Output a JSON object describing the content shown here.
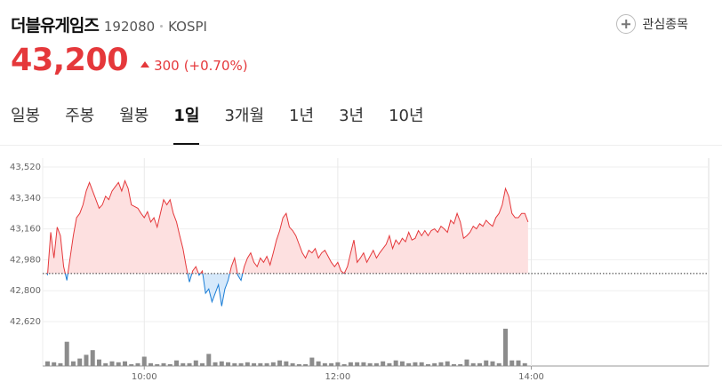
{
  "header": {
    "name": "더블유게임즈",
    "code": "192080",
    "market": "KOSPI",
    "watch_button": "관심종목"
  },
  "quote": {
    "price": {
      "value": 43200,
      "label": "43,200"
    },
    "change": 300,
    "change_pct": {
      "value": 0.7,
      "label": "(+0.70%)"
    }
  },
  "tabs": {
    "items": [
      "일봉",
      "주봉",
      "월봉",
      "1일",
      "3개월",
      "1년",
      "3년",
      "10년"
    ],
    "selected": 3
  },
  "chart_data": [
    {
      "type": "line",
      "x": [
        "09:00",
        "09:02",
        "09:04",
        "09:06",
        "09:08",
        "09:10",
        "09:12",
        "09:14",
        "09:16",
        "09:18",
        "09:20",
        "09:22",
        "09:24",
        "09:26",
        "09:28",
        "09:30",
        "09:32",
        "09:34",
        "09:36",
        "09:38",
        "09:40",
        "09:42",
        "09:44",
        "09:46",
        "09:48",
        "09:50",
        "09:52",
        "09:54",
        "09:56",
        "09:58",
        "10:00",
        "10:02",
        "10:04",
        "10:06",
        "10:08",
        "10:10",
        "10:12",
        "10:14",
        "10:16",
        "10:18",
        "10:20",
        "10:22",
        "10:24",
        "10:26",
        "10:28",
        "10:30",
        "10:32",
        "10:34",
        "10:36",
        "10:38",
        "10:40",
        "10:42",
        "10:44",
        "10:46",
        "10:48",
        "10:50",
        "10:52",
        "10:54",
        "10:56",
        "10:58",
        "11:00",
        "11:02",
        "11:04",
        "11:06",
        "11:08",
        "11:10",
        "11:12",
        "11:14",
        "11:16",
        "11:18",
        "11:20",
        "11:22",
        "11:24",
        "11:26",
        "11:28",
        "11:30",
        "11:32",
        "11:34",
        "11:36",
        "11:38",
        "11:40",
        "11:42",
        "11:44",
        "11:46",
        "11:48",
        "11:50",
        "11:52",
        "11:54",
        "11:56",
        "11:58",
        "12:00",
        "12:02",
        "12:04",
        "12:06",
        "12:08",
        "12:10",
        "12:12",
        "12:14",
        "12:16",
        "12:18",
        "12:20",
        "12:22",
        "12:24",
        "12:26",
        "12:28",
        "12:30",
        "12:32",
        "12:34",
        "12:36",
        "12:38",
        "12:40",
        "12:42",
        "12:44",
        "12:46",
        "12:48",
        "12:50",
        "12:52",
        "12:54",
        "12:56",
        "12:58",
        "13:00",
        "13:02",
        "13:04",
        "13:06",
        "13:08",
        "13:10",
        "13:12",
        "13:14",
        "13:16",
        "13:18",
        "13:20",
        "13:22",
        "13:24",
        "13:26",
        "13:28",
        "13:30",
        "13:32",
        "13:34",
        "13:36",
        "13:38",
        "13:40",
        "13:42",
        "13:44",
        "13:46",
        "13:48",
        "13:50",
        "13:52",
        "13:54",
        "13:56",
        "13:58"
      ],
      "series": [
        {
          "color": "#e5383b",
          "below_color": "#1c7ed6",
          "fill": "#fde0e0",
          "below_fill": "#d6e9fb",
          "values": [
            42890,
            43140,
            42990,
            43170,
            43120,
            42940,
            42860,
            42990,
            43120,
            43225,
            43250,
            43300,
            43380,
            43430,
            43380,
            43330,
            43280,
            43300,
            43350,
            43330,
            43380,
            43405,
            43430,
            43380,
            43440,
            43395,
            43300,
            43290,
            43280,
            43250,
            43225,
            43260,
            43200,
            43225,
            43170,
            43250,
            43330,
            43300,
            43330,
            43250,
            43200,
            43120,
            43045,
            42940,
            42850,
            42915,
            42940,
            42890,
            42915,
            42785,
            42810,
            42735,
            42785,
            42835,
            42710,
            42810,
            42860,
            42940,
            42990,
            42890,
            42860,
            42940,
            42990,
            43020,
            42965,
            42940,
            42990,
            42965,
            43000,
            42950,
            43020,
            43095,
            43150,
            43225,
            43250,
            43170,
            43150,
            43120,
            43070,
            43020,
            42990,
            43035,
            43020,
            43045,
            42990,
            43020,
            43035,
            43000,
            42965,
            42940,
            42965,
            42915,
            42900,
            42940,
            43020,
            43095,
            42965,
            42990,
            43020,
            42965,
            43000,
            43035,
            42990,
            43020,
            43045,
            43070,
            43120,
            43045,
            43095,
            43070,
            43105,
            43085,
            43140,
            43095,
            43105,
            43150,
            43120,
            43150,
            43120,
            43150,
            43160,
            43140,
            43175,
            43160,
            43140,
            43210,
            43190,
            43250,
            43200,
            43105,
            43120,
            43140,
            43175,
            43160,
            43190,
            43175,
            43210,
            43190,
            43175,
            43225,
            43250,
            43300,
            43395,
            43350,
            43250,
            43225,
            43225,
            43250,
            43250,
            43200
          ]
        }
      ],
      "xlim": [
        "08:57",
        "15:50"
      ],
      "xticks": [
        "10:00",
        "12:00",
        "14:00"
      ],
      "ylim": [
        42620,
        43520
      ],
      "yticks": [
        {
          "value": 42620,
          "label": "42,620"
        },
        {
          "value": 42800,
          "label": "42,800"
        },
        {
          "value": 42980,
          "label": "42,980"
        },
        {
          "value": 43160,
          "label": "43,160"
        },
        {
          "value": 43340,
          "label": "43,340"
        },
        {
          "value": 43520,
          "label": "43,520"
        }
      ],
      "grid": true
    },
    {
      "type": "bar",
      "x": [
        "09:00",
        "09:04",
        "09:08",
        "09:12",
        "09:16",
        "09:20",
        "09:24",
        "09:28",
        "09:32",
        "09:36",
        "09:40",
        "09:44",
        "09:48",
        "09:52",
        "09:56",
        "10:00",
        "10:04",
        "10:08",
        "10:12",
        "10:16",
        "10:20",
        "10:24",
        "10:28",
        "10:32",
        "10:36",
        "10:40",
        "10:44",
        "10:48",
        "10:52",
        "10:56",
        "11:00",
        "11:04",
        "11:08",
        "11:12",
        "11:16",
        "11:20",
        "11:24",
        "11:28",
        "11:32",
        "11:36",
        "11:40",
        "11:44",
        "11:48",
        "11:52",
        "11:56",
        "12:00",
        "12:04",
        "12:08",
        "12:12",
        "12:16",
        "12:20",
        "12:24",
        "12:28",
        "12:32",
        "12:36",
        "12:40",
        "12:44",
        "12:48",
        "12:52",
        "12:56",
        "13:00",
        "13:04",
        "13:08",
        "13:12",
        "13:16",
        "13:20",
        "13:24",
        "13:28",
        "13:32",
        "13:36",
        "13:40",
        "13:44",
        "13:48",
        "13:52",
        "13:56"
      ],
      "values": [
        5,
        4,
        3,
        26,
        5,
        8,
        12,
        17,
        7,
        3,
        5,
        4,
        5,
        2,
        3,
        10,
        3,
        2,
        3,
        2,
        6,
        3,
        3,
        6,
        3,
        13,
        4,
        5,
        4,
        3,
        3,
        4,
        3,
        3,
        3,
        4,
        6,
        5,
        3,
        2,
        2,
        9,
        5,
        3,
        3,
        4,
        2,
        4,
        4,
        4,
        3,
        3,
        5,
        3,
        6,
        5,
        3,
        4,
        4,
        2,
        3,
        4,
        5,
        2,
        2,
        7,
        3,
        3,
        6,
        5,
        3,
        40,
        6,
        6,
        3
      ],
      "color": "#8c8c8c",
      "xlim": [
        "08:57",
        "15:50"
      ]
    }
  ]
}
